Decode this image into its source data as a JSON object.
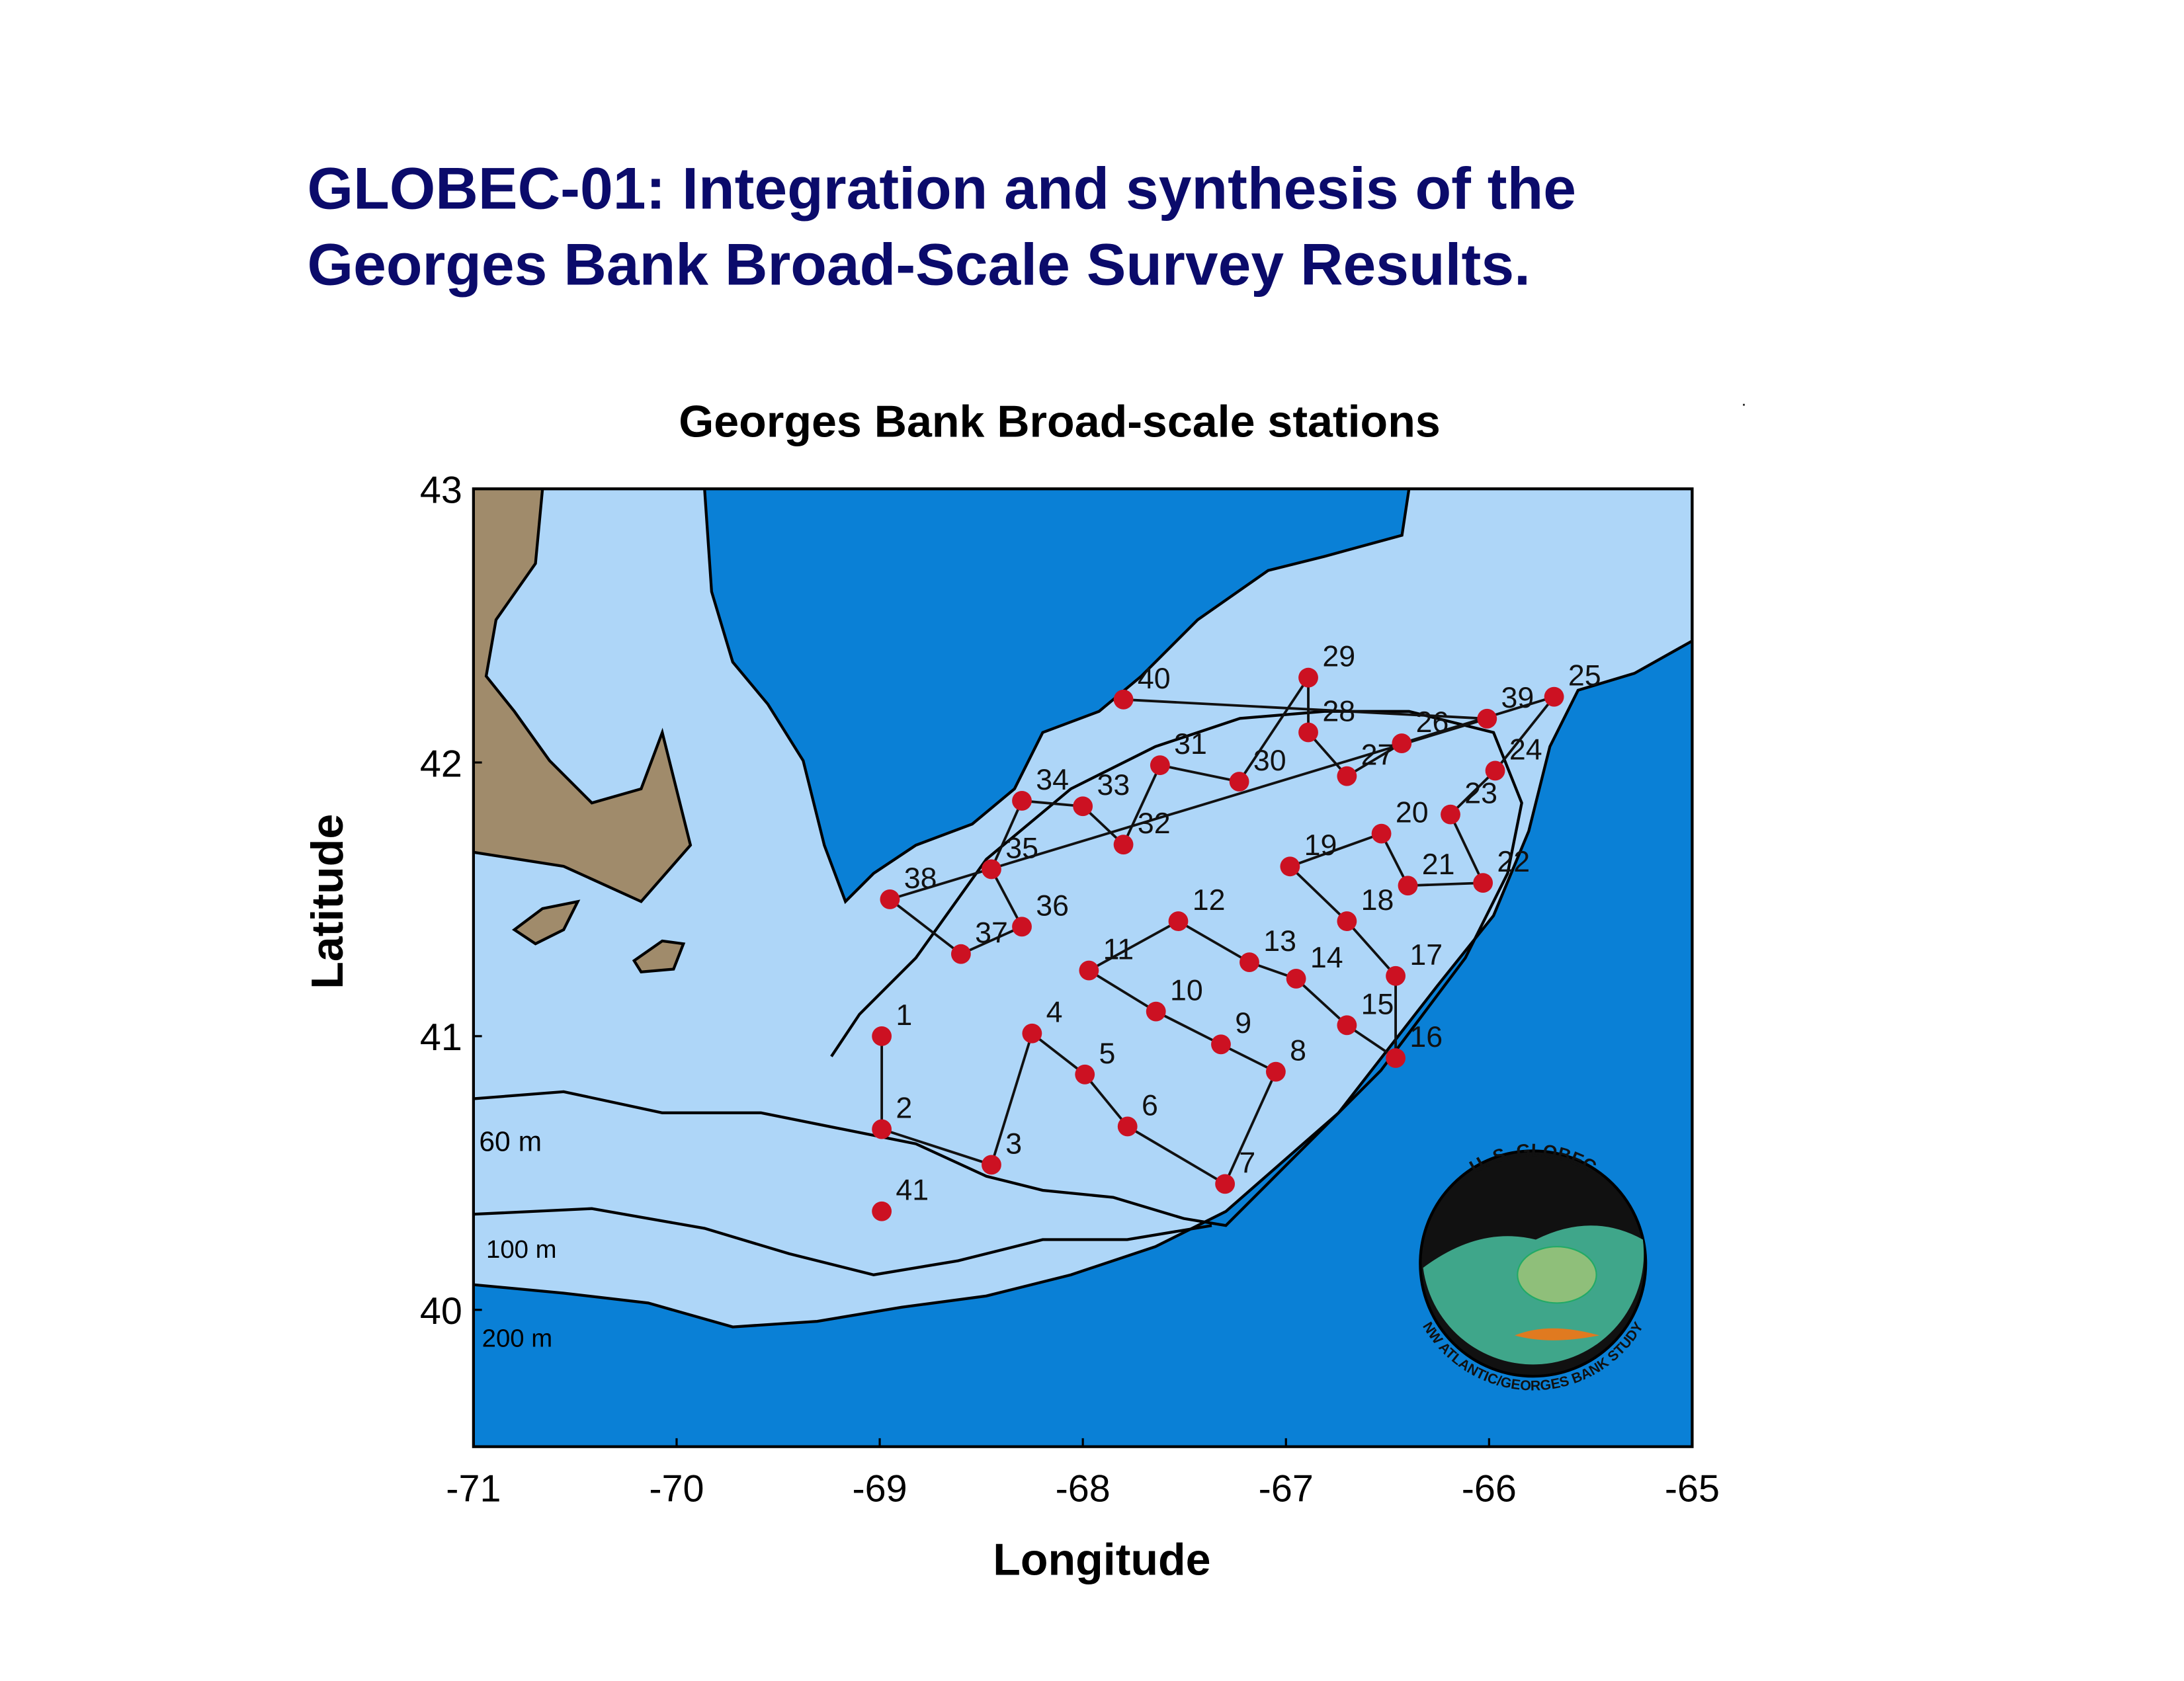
{
  "page_title": [
    "GLOBEC-01: Integration and synthesis of the",
    "Georges Bank Broad-Scale Survey Results."
  ],
  "chart_data": {
    "type": "scatter",
    "title": "Georges Bank Broad-scale stations",
    "x_label": "Longitude",
    "y_label": "Latitude",
    "xlim": [
      -71,
      -65
    ],
    "ylim": [
      39.5,
      43
    ],
    "xticks": [
      -71,
      -70,
      -69,
      -68,
      -67,
      -66,
      -65
    ],
    "yticks": [
      40,
      41,
      42,
      43
    ],
    "color": "#cc1122",
    "labels": [
      "1",
      "2",
      "3",
      "4",
      "5",
      "6",
      "7",
      "8",
      "9",
      "10",
      "11",
      "12",
      "13",
      "14",
      "15",
      "16",
      "17",
      "18",
      "19",
      "20",
      "21",
      "22",
      "23",
      "24",
      "25",
      "26",
      "27",
      "28",
      "29",
      "30",
      "31",
      "32",
      "33",
      "34",
      "35",
      "36",
      "37",
      "38",
      "39",
      "40",
      "41"
    ],
    "x": [
      -68.99,
      -68.99,
      -68.45,
      -68.25,
      -67.99,
      -67.78,
      -67.3,
      -67.05,
      -67.32,
      -67.64,
      -67.97,
      -67.53,
      -67.18,
      -66.95,
      -66.7,
      -66.46,
      -66.46,
      -66.7,
      -66.98,
      -66.53,
      -66.4,
      -66.03,
      -66.19,
      -65.97,
      -65.68,
      -66.43,
      -66.7,
      -66.89,
      -66.89,
      -67.23,
      -67.62,
      -67.8,
      -68.0,
      -68.3,
      -68.45,
      -68.3,
      -68.6,
      -68.95,
      -66.01,
      -67.8,
      -68.99
    ],
    "values": [
      41.0,
      40.66,
      40.53,
      41.01,
      40.86,
      40.67,
      40.46,
      40.87,
      40.97,
      41.09,
      41.24,
      41.42,
      41.27,
      41.21,
      41.04,
      40.92,
      41.22,
      41.42,
      41.62,
      41.74,
      41.55,
      41.56,
      41.81,
      41.97,
      42.24,
      42.07,
      41.95,
      42.11,
      42.31,
      41.93,
      41.99,
      41.7,
      41.84,
      41.86,
      41.61,
      41.4,
      41.3,
      41.5,
      42.16,
      42.23,
      40.36
    ],
    "annotations": [
      "60 m",
      "100 m",
      "200 m"
    ]
  },
  "logo": {
    "top_text": "U. S. GLOBEC",
    "bottom_text": "NW ATLANTIC/GEORGES BANK STUDY"
  }
}
